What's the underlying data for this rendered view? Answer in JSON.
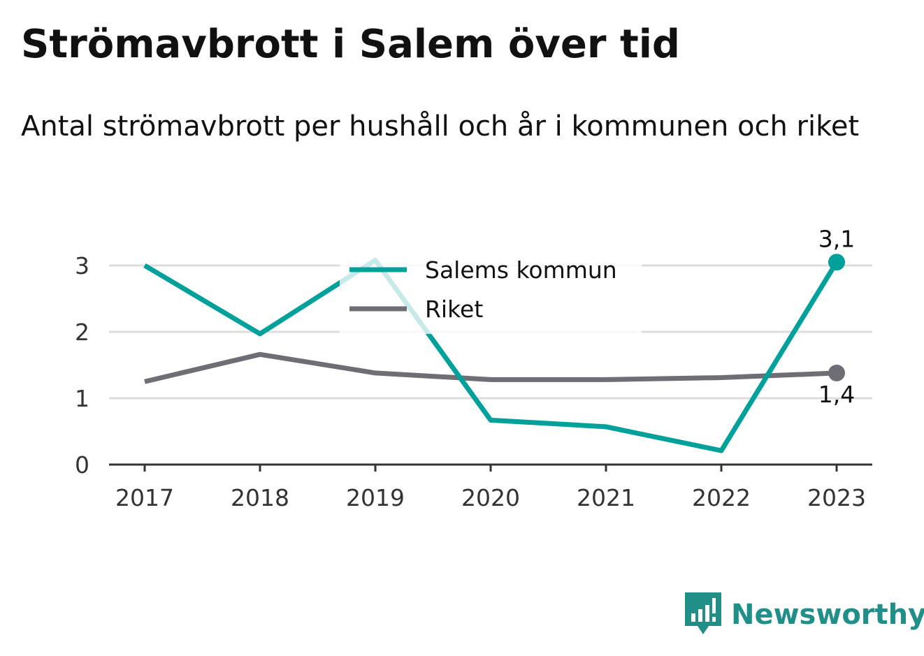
{
  "header": {
    "title": "Strömavbrott i Salem över tid",
    "subtitle": "Antal strömavbrott per hushåll och år i kommunen och riket"
  },
  "brand": {
    "name": "Newsworthy",
    "icon": "newsworthy-logo-icon",
    "color": "#1f8f88"
  },
  "chart_data": {
    "type": "line",
    "title": "Strömavbrott i Salem över tid",
    "subtitle": "Antal strömavbrott per hushåll och år i kommunen och riket",
    "xlabel": "",
    "ylabel": "",
    "x": [
      "2017",
      "2018",
      "2019",
      "2020",
      "2021",
      "2022",
      "2023"
    ],
    "ylim": [
      0,
      3
    ],
    "yticks": [
      "0",
      "1",
      "2",
      "3"
    ],
    "grid": true,
    "legend": "top-center",
    "series": [
      {
        "name": "Salems kommun",
        "color": "#00a19a",
        "values": [
          3.0,
          1.97,
          3.08,
          0.67,
          0.57,
          0.21,
          3.05
        ],
        "end_label": "3,1"
      },
      {
        "name": "Riket",
        "color": "#6f6e75",
        "values": [
          1.25,
          1.66,
          1.38,
          1.28,
          1.28,
          1.31,
          1.38
        ],
        "end_label": "1,4"
      }
    ]
  }
}
